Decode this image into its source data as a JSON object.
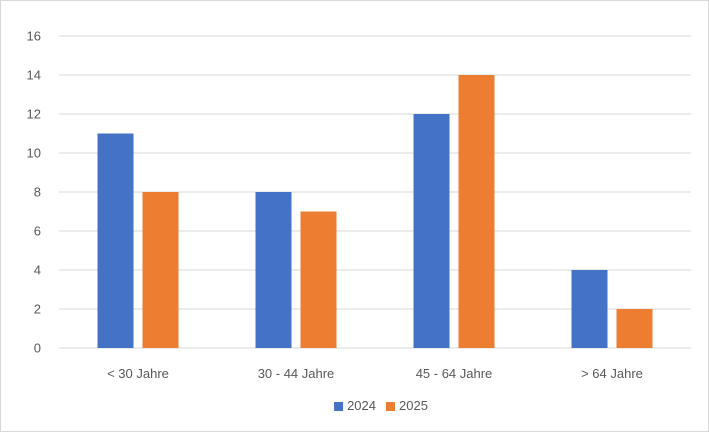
{
  "chart_data": {
    "type": "bar",
    "title": "",
    "xlabel": "",
    "ylabel": "",
    "categories": [
      "< 30 Jahre",
      "30 - 44 Jahre",
      "45 - 64 Jahre",
      "> 64 Jahre"
    ],
    "series": [
      {
        "name": "2024",
        "color": "#4472C4",
        "values": [
          11,
          8,
          12,
          4
        ]
      },
      {
        "name": "2025",
        "color": "#ED7D31",
        "values": [
          8,
          7,
          14,
          2
        ]
      }
    ],
    "ylim": [
      0,
      16
    ],
    "yticks": [
      "0",
      "2",
      "4",
      "6",
      "8",
      "10",
      "12",
      "14",
      "16"
    ],
    "grid": true,
    "legend_position": "bottom"
  }
}
